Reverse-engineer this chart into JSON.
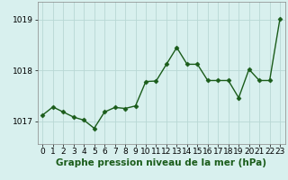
{
  "x": [
    0,
    1,
    2,
    3,
    4,
    5,
    6,
    7,
    8,
    9,
    10,
    11,
    12,
    13,
    14,
    15,
    16,
    17,
    18,
    19,
    20,
    21,
    22,
    23
  ],
  "y": [
    1017.12,
    1017.28,
    1017.18,
    1017.08,
    1017.02,
    1016.86,
    1017.18,
    1017.27,
    1017.25,
    1017.3,
    1017.78,
    1017.79,
    1018.12,
    1018.45,
    1018.12,
    1018.12,
    1017.8,
    1017.8,
    1017.8,
    1017.46,
    1018.02,
    1017.8,
    1017.8,
    1019.02
  ],
  "line_color": "#1a5c1a",
  "marker": "D",
  "marker_size": 2.5,
  "background_color": "#d8f0ee",
  "grid_color": "#b8d8d4",
  "xlabel": "Graphe pression niveau de la mer (hPa)",
  "xlabel_fontsize": 7.5,
  "yticks": [
    1017,
    1018,
    1019
  ],
  "ylim": [
    1016.55,
    1019.35
  ],
  "xlim": [
    -0.5,
    23.5
  ],
  "xtick_labels": [
    "0",
    "1",
    "2",
    "3",
    "4",
    "5",
    "6",
    "7",
    "8",
    "9",
    "10",
    "11",
    "12",
    "13",
    "14",
    "15",
    "16",
    "17",
    "18",
    "19",
    "20",
    "21",
    "22",
    "23"
  ],
  "tick_fontsize": 6.5,
  "ytick_fontsize": 6.5,
  "linewidth": 1.0
}
